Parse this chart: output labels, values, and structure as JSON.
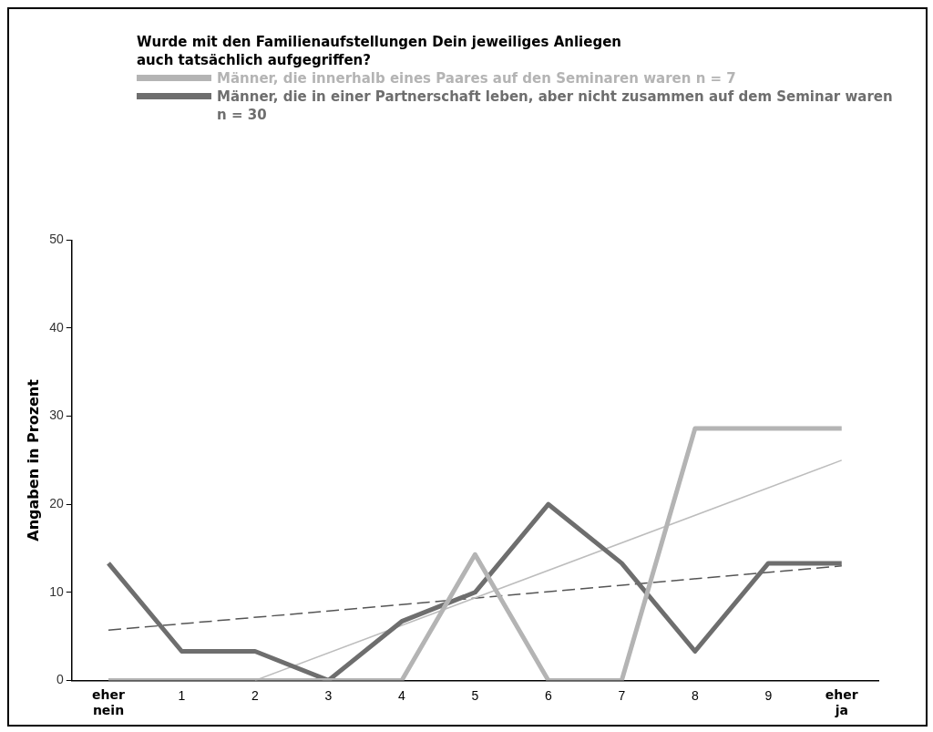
{
  "chart_data": {
    "type": "line",
    "title": "Wurde mit den Familienaufstellungen Dein jeweiliges Anliegen auch tatsächlich aufgegriffen?",
    "ylabel": "Angaben in Prozent",
    "categories": [
      "eher nein",
      "1",
      "2",
      "3",
      "4",
      "5",
      "6",
      "7",
      "8",
      "9",
      "eher ja"
    ],
    "series": [
      {
        "name": "Männer, die innerhalb eines Paares auf den Seminaren waren n = 7",
        "color": "#b4b4b4",
        "values": [
          0,
          0,
          0,
          0,
          0,
          14.3,
          0,
          0,
          28.6,
          28.6,
          28.6
        ]
      },
      {
        "name": "Männer, die in einer Partnerschaft leben, aber nicht zusammen auf dem Seminar waren n = 30",
        "color": "#6e6e6e",
        "values": [
          13.3,
          3.3,
          3.3,
          0,
          6.7,
          10,
          20,
          13.3,
          3.3,
          13.3,
          13.3
        ]
      },
      {
        "type": "line",
        "color": "#bdbdbd",
        "values": [
          null,
          null,
          0,
          null,
          null,
          null,
          null,
          null,
          null,
          null,
          25
        ],
        "line_style": "solid"
      },
      {
        "type": "line",
        "color": "#555555",
        "values": [
          5.7,
          null,
          null,
          null,
          null,
          null,
          null,
          null,
          null,
          null,
          13
        ],
        "line_style": "dashed"
      }
    ],
    "ylim": [
      0,
      50
    ],
    "yticks": [
      0,
      10,
      20,
      30,
      40,
      50
    ],
    "grid": false,
    "legend": "top",
    "marker": "none"
  }
}
